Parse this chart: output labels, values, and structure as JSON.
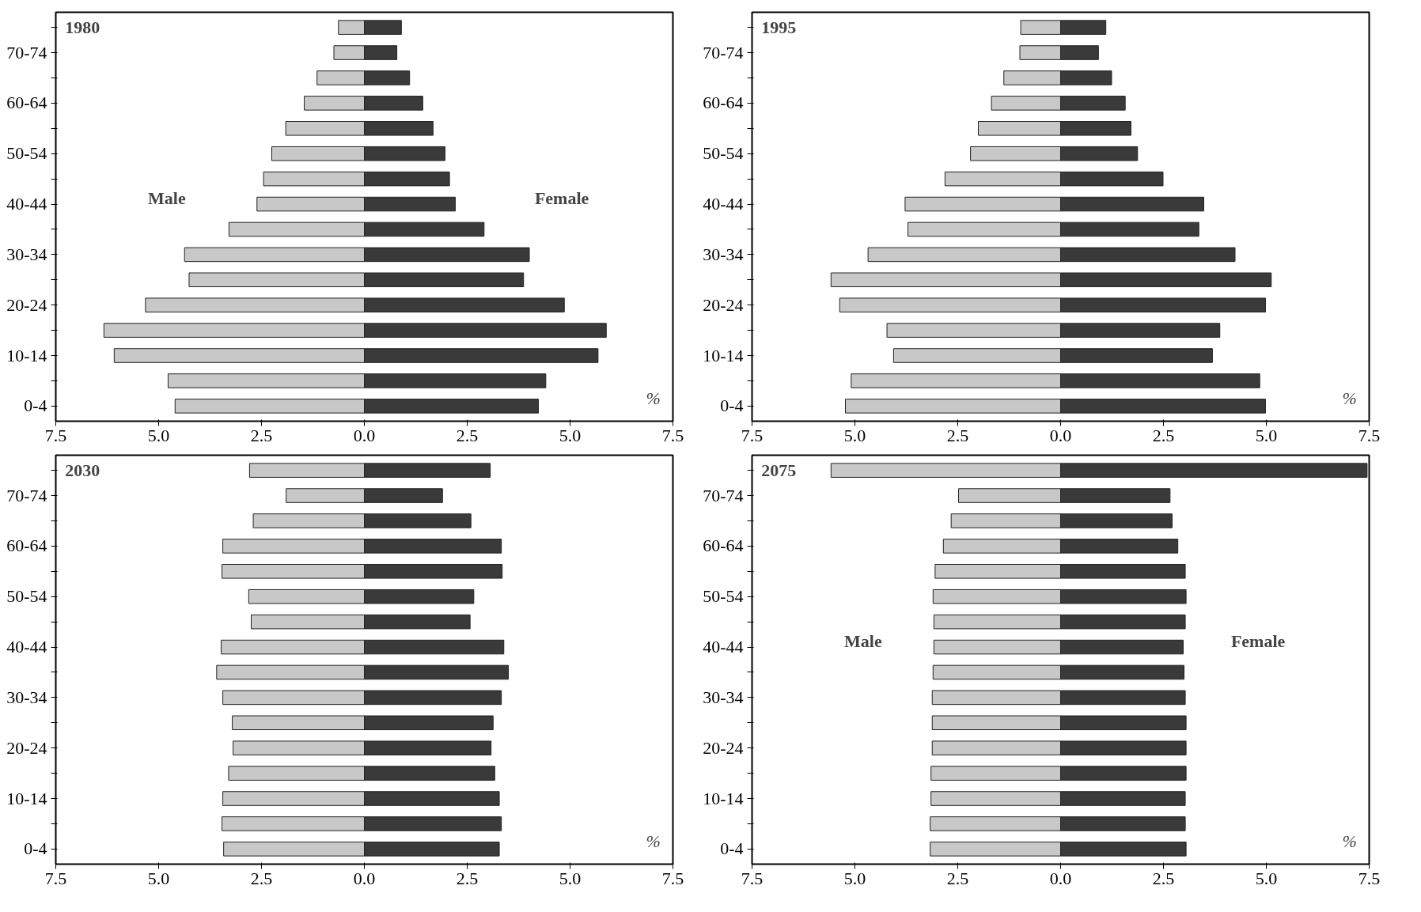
{
  "chart_data": [
    {
      "type": "bar",
      "orientation": "horizontal",
      "stacked": true,
      "title": "1980",
      "categories": [
        null,
        "70-74",
        null,
        "60-64",
        null,
        "50-54",
        null,
        "40-44",
        null,
        "30-34",
        null,
        "20-24",
        null,
        "10-14",
        null,
        "0-4"
      ],
      "series": [
        {
          "name": "Male",
          "color": "#c8c8c8",
          "values": [
            -0.63,
            -0.74,
            -1.15,
            -1.46,
            -1.91,
            -2.25,
            -2.45,
            -2.61,
            -3.29,
            -4.37,
            -4.26,
            -5.32,
            -6.33,
            -6.08,
            -4.77,
            -4.6
          ]
        },
        {
          "name": "Female",
          "color": "#3a3a3a",
          "values": [
            0.9,
            0.79,
            1.1,
            1.42,
            1.67,
            1.96,
            2.07,
            2.21,
            2.91,
            4.01,
            3.87,
            4.86,
            5.88,
            5.68,
            4.41,
            4.23
          ]
        }
      ],
      "xlim": [
        -7.5,
        7.5
      ],
      "xticks": [
        {
          "value": -7.5,
          "label": "7.5"
        },
        {
          "value": -5,
          "label": "5.0"
        },
        {
          "value": -2.5,
          "label": "2.5"
        },
        {
          "value": 0,
          "label": "0.0"
        },
        {
          "value": 2.5,
          "label": "2.5"
        },
        {
          "value": 5,
          "label": "5.0"
        },
        {
          "value": 7.5,
          "label": "7.5"
        }
      ],
      "annotations": [
        "%"
      ],
      "grid": false
    },
    {
      "type": "bar",
      "orientation": "horizontal",
      "stacked": true,
      "title": "1995",
      "categories": [
        null,
        "70-74",
        null,
        "60-64",
        null,
        "50-54",
        null,
        "40-44",
        null,
        "30-34",
        null,
        "20-24",
        null,
        "10-14",
        null,
        "0-4"
      ],
      "series": [
        {
          "color": "#c8c8c8",
          "values": [
            -0.97,
            -0.99,
            -1.38,
            -1.68,
            -2.0,
            -2.19,
            -2.81,
            -3.78,
            -3.71,
            -4.68,
            -5.58,
            -5.37,
            -4.22,
            -4.06,
            -5.09,
            -5.23
          ]
        },
        {
          "color": "#3a3a3a",
          "values": [
            1.1,
            0.92,
            1.24,
            1.57,
            1.71,
            1.87,
            2.49,
            3.48,
            3.36,
            4.24,
            5.12,
            4.98,
            3.87,
            3.69,
            4.84,
            4.98
          ]
        }
      ],
      "xlim": [
        -7.5,
        7.5
      ],
      "xticks": [
        {
          "value": -7.5,
          "label": "7.5"
        },
        {
          "value": -5,
          "label": "5.0"
        },
        {
          "value": -2.5,
          "label": "2.5"
        },
        {
          "value": 0,
          "label": "0.0"
        },
        {
          "value": 2.5,
          "label": "2.5"
        },
        {
          "value": 5,
          "label": "5.0"
        },
        {
          "value": 7.5,
          "label": "7.5"
        }
      ],
      "annotations": [
        "%"
      ],
      "grid": false
    },
    {
      "type": "bar",
      "orientation": "horizontal",
      "stacked": true,
      "title": "2030",
      "categories": [
        null,
        "70-74",
        null,
        "60-64",
        null,
        "50-54",
        null,
        "40-44",
        null,
        "30-34",
        null,
        "20-24",
        null,
        "10-14",
        null,
        "0-4"
      ],
      "series": [
        {
          "color": "#c8c8c8",
          "values": [
            -2.79,
            -1.9,
            -2.7,
            -3.44,
            -3.46,
            -2.81,
            -2.75,
            -3.48,
            -3.59,
            -3.44,
            -3.21,
            -3.19,
            -3.3,
            -3.44,
            -3.46,
            -3.42
          ]
        },
        {
          "color": "#3a3a3a",
          "values": [
            3.06,
            1.9,
            2.59,
            3.33,
            3.35,
            2.66,
            2.57,
            3.39,
            3.5,
            3.33,
            3.13,
            3.08,
            3.17,
            3.28,
            3.33,
            3.28
          ]
        }
      ],
      "xlim": [
        -7.5,
        7.5
      ],
      "xticks": [
        {
          "value": -7.5,
          "label": "7.5"
        },
        {
          "value": -5,
          "label": "5.0"
        },
        {
          "value": -2.5,
          "label": "2.5"
        },
        {
          "value": 0,
          "label": "0.0"
        },
        {
          "value": 2.5,
          "label": "2.5"
        },
        {
          "value": 5,
          "label": "5.0"
        },
        {
          "value": 7.5,
          "label": "7.5"
        }
      ],
      "annotations": [
        "%"
      ],
      "grid": false
    },
    {
      "type": "bar",
      "orientation": "horizontal",
      "stacked": true,
      "title": "2075",
      "categories": [
        null,
        "70-74",
        null,
        "60-64",
        null,
        "50-54",
        null,
        "40-44",
        null,
        "30-34",
        null,
        "20-24",
        null,
        "10-14",
        null,
        "0-4"
      ],
      "series": [
        {
          "name": "Male",
          "color": "#c8c8c8",
          "values": [
            -5.58,
            -2.48,
            -2.66,
            -2.85,
            -3.05,
            -3.1,
            -3.08,
            -3.08,
            -3.1,
            -3.12,
            -3.12,
            -3.12,
            -3.15,
            -3.15,
            -3.17,
            -3.17
          ]
        },
        {
          "name": "Female",
          "color": "#3a3a3a",
          "values": [
            7.45,
            2.66,
            2.71,
            2.85,
            3.03,
            3.05,
            3.03,
            2.98,
            3.0,
            3.03,
            3.05,
            3.05,
            3.05,
            3.03,
            3.03,
            3.05
          ]
        }
      ],
      "xlim": [
        -7.5,
        7.5
      ],
      "xticks": [
        {
          "value": -7.5,
          "label": "7.5"
        },
        {
          "value": -5,
          "label": "5.0"
        },
        {
          "value": -2.5,
          "label": "2.5"
        },
        {
          "value": 0,
          "label": "0.0"
        },
        {
          "value": 2.5,
          "label": "2.5"
        },
        {
          "value": 5,
          "label": "5.0"
        },
        {
          "value": 7.5,
          "label": "7.5"
        }
      ],
      "annotations": [
        "%"
      ],
      "grid": false
    }
  ]
}
